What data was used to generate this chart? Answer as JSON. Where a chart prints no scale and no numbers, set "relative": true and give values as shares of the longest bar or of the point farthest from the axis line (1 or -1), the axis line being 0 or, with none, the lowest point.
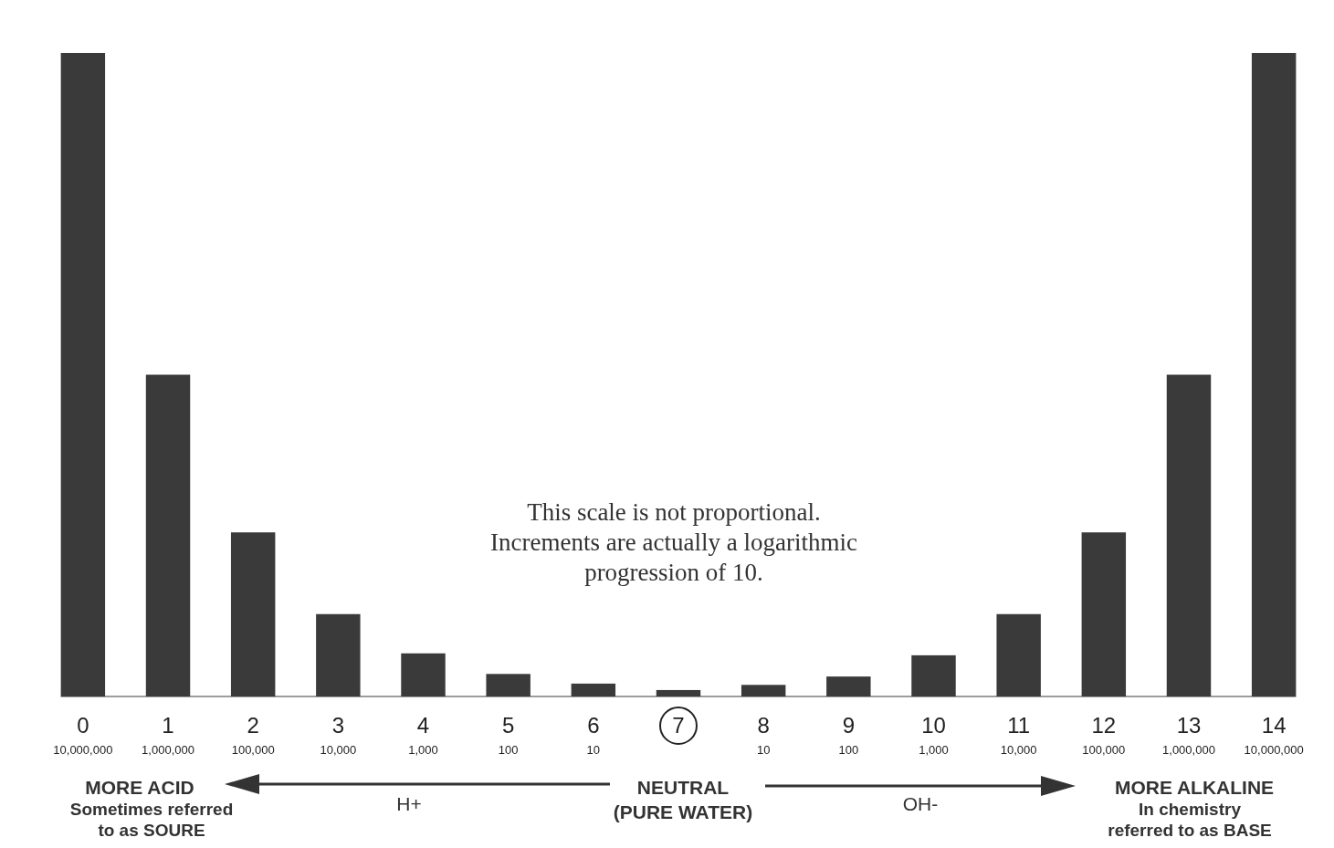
{
  "chart_data": {
    "type": "bar",
    "relative": true,
    "color": "#3a3a3a",
    "categories": [
      "0\n10,000,000",
      "1\n1,000,000",
      "2\n100,000",
      "3\n10,000",
      "4\n1,000",
      "5\n100",
      "6\n10",
      "7",
      "8\n10",
      "9\n100",
      "10\n1,000",
      "11\n10,000",
      "12\n100,000",
      "13\n1,000,000",
      "14\n10,000,000"
    ],
    "values": [
      1,
      0.5,
      0.255,
      0.128,
      0.067,
      0.035,
      0.02,
      0.01,
      0.018,
      0.031,
      0.064,
      0.128,
      0.255,
      0.5,
      1
    ],
    "annotations": [
      "This scale is not proportional.\nIncrements are actually a logarithmic\nprogression of 10.",
      "MORE ACID",
      "Sometimes referred\nto as SOURE",
      "H+",
      "NEUTRAL\n(PURE WATER)",
      "OH-",
      "MORE ALKALINE",
      "In chemistry\nreferred to as BASE"
    ]
  }
}
